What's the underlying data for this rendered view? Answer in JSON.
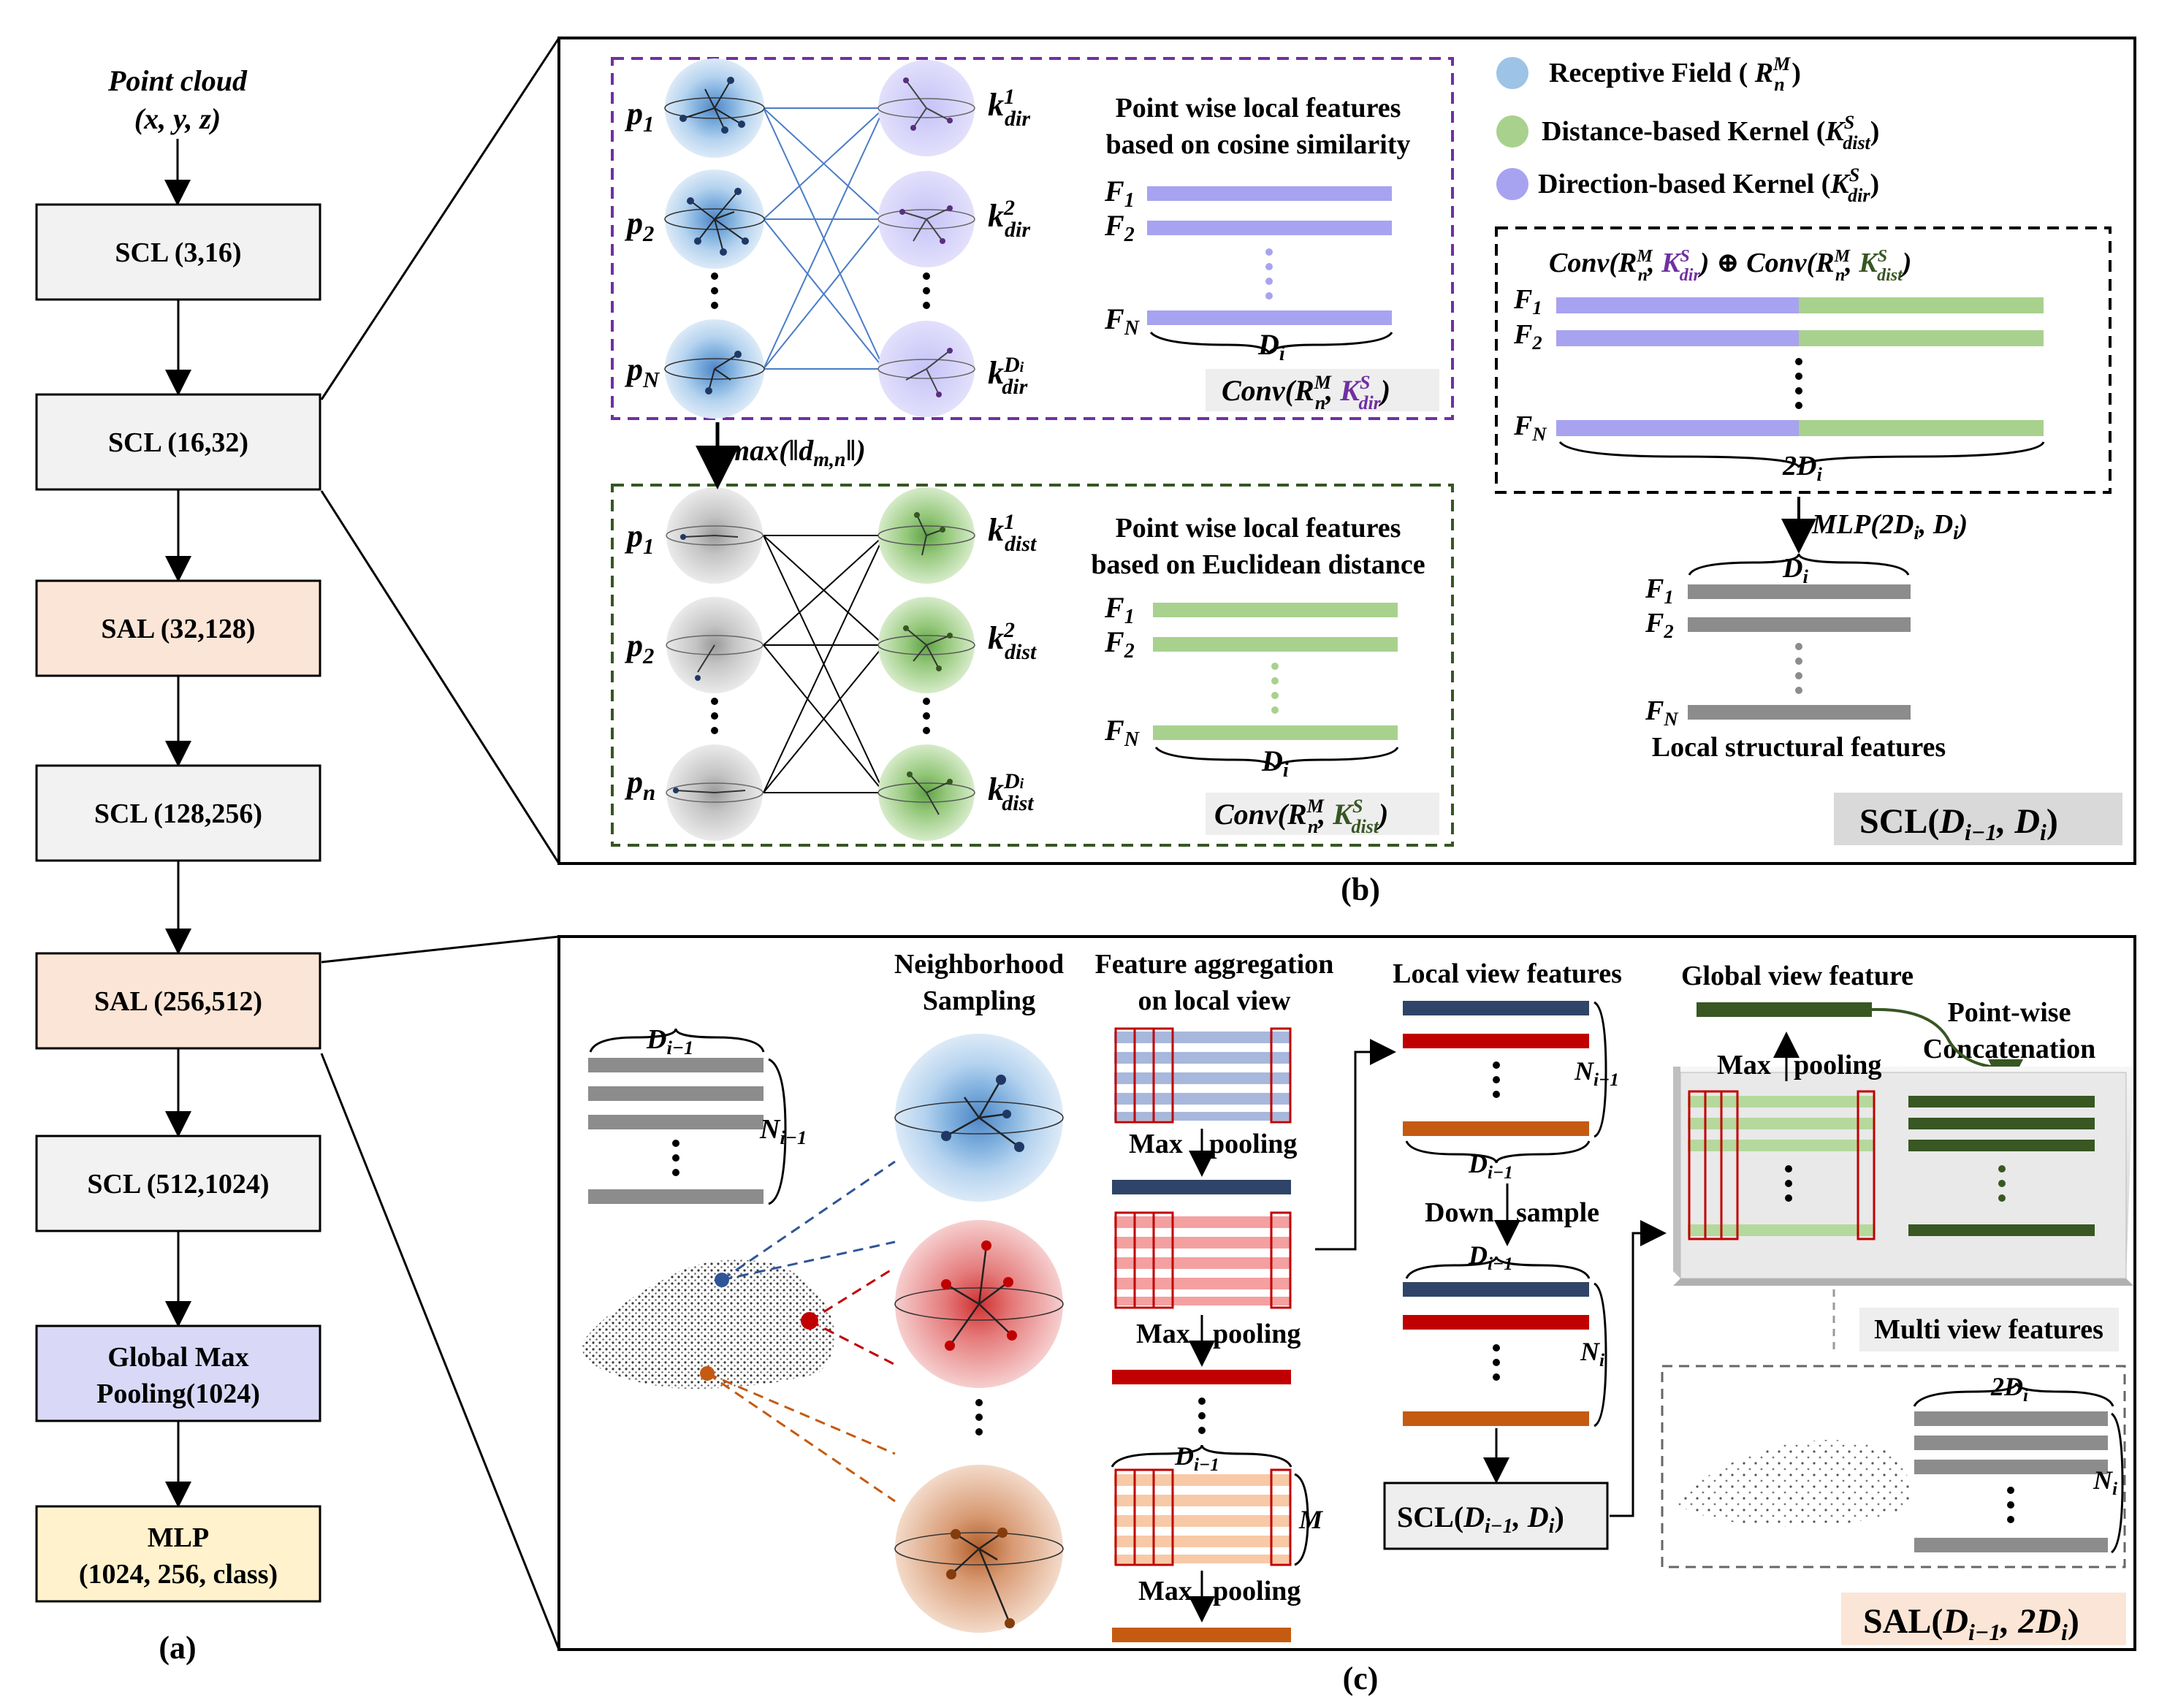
{
  "colors": {
    "receptive": "#9dc3e6",
    "distance": "#a9d18e",
    "direction": "#a7a3f0",
    "scl_box": "#f2f2f2",
    "sal_box": "#fbe5d6",
    "pool_box": "#d9d9f7",
    "mlp_box": "#fff2cc",
    "purple": "#7030a0",
    "green_dark": "#375623",
    "bar_gray": "#8c8c8c",
    "navy": "#2f4468",
    "red": "#c00000",
    "orange": "#c55a11",
    "dark_green": "#385723"
  },
  "pipeline": {
    "input_title": "Point cloud",
    "input_coords": "(x, y, z)",
    "blocks": [
      {
        "label": "SCL (3,16)",
        "kind": "scl"
      },
      {
        "label": "SCL (16,32)",
        "kind": "scl"
      },
      {
        "label": "SAL (32,128)",
        "kind": "sal"
      },
      {
        "label": "SCL (128,256)",
        "kind": "scl"
      },
      {
        "label": "SAL (256,512)",
        "kind": "sal"
      },
      {
        "label": "SCL (512,1024)",
        "kind": "scl"
      },
      {
        "label": "Global Max Pooling(1024)",
        "kind": "pool"
      },
      {
        "label": "MLP (1024, 256, class)",
        "kind": "mlp"
      }
    ],
    "caption": "(a)"
  },
  "panel_b": {
    "caption": "(b)",
    "top_text": [
      "Point wise local features",
      "based on cosine similarity"
    ],
    "bottom_text": [
      "Point wise local features",
      "based on Euclidean distance"
    ],
    "max_label": "max(‖d",
    "legend": [
      {
        "label": "Receptive Field ( R",
        "sup": "M",
        "sub": "n",
        "tail": ")",
        "icon": "receptive-icon"
      },
      {
        "label": "Distance-based Kernel (K",
        "sup": "S",
        "sub": "dist",
        "tail": ")",
        "icon": "distance-icon"
      },
      {
        "label": "Direction-based Kernel (K",
        "sup": "S",
        "sub": "dir",
        "tail": ")",
        "icon": "direction-icon"
      }
    ],
    "conv_concat": "Conv(R",
    "mlp_label": "MLP(2D",
    "local_structural": "Local structural features",
    "scl_title": "SCL(D"
  },
  "panel_c": {
    "caption": "(c)",
    "neighborhood": [
      "Neighborhood",
      "Sampling"
    ],
    "feature_agg": [
      "Feature aggregation",
      "on local view"
    ],
    "local_view": "Local view features",
    "global_view": "Global view feature",
    "pointwise": [
      "Point-wise",
      "Concatenation"
    ],
    "max_pooling": [
      "Max",
      "pooling"
    ],
    "down_sample": [
      "Down",
      "sample"
    ],
    "multi_view": "Multi view features",
    "sal_title": "SAL(D"
  }
}
